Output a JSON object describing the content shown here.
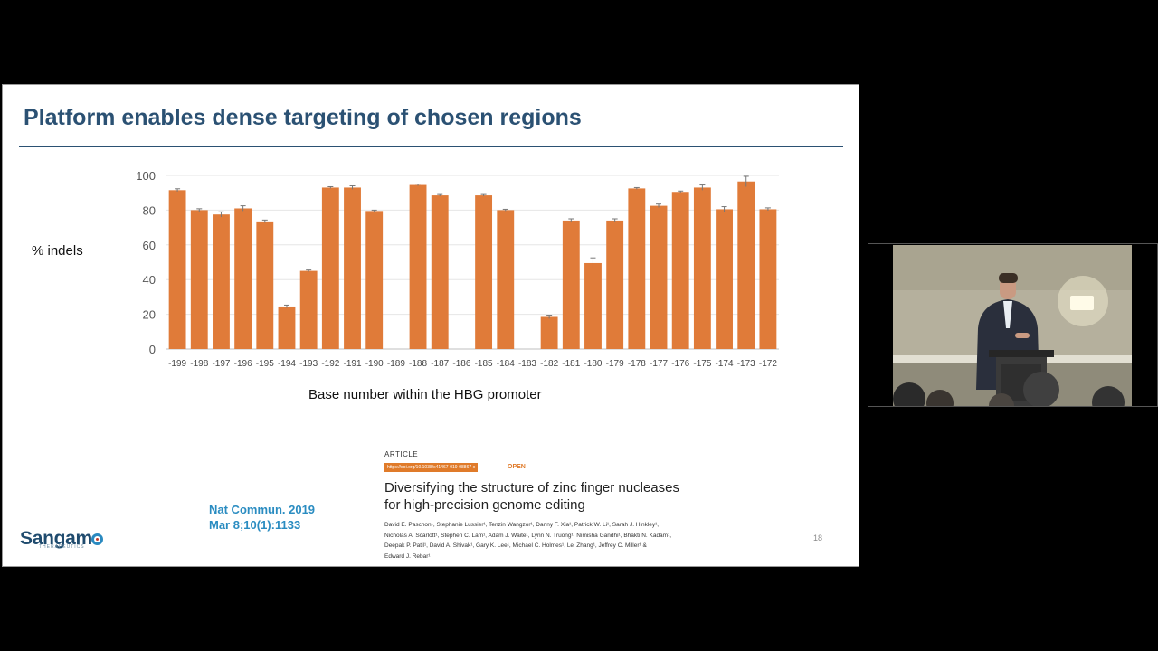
{
  "slide": {
    "title": "Platform enables dense targeting of chosen regions",
    "page_number": "18",
    "logo_text": "Sangam",
    "logo_subtext": "THERAPEUTICS",
    "journal_ref_line1": "Nat Commun. 2019",
    "journal_ref_line2": "Mar 8;10(1):1133"
  },
  "paper": {
    "type": "ARTICLE",
    "doi": "https://doi.org/10.1038/s41467-019-08867-x",
    "open_label": "OPEN",
    "title_line1": "Diversifying the structure of zinc finger nucleases",
    "title_line2": "for high-precision genome editing",
    "authors": [
      "David E. Paschon¹, Stephanie Lussier¹, Tenzin Wangzor¹, Danny F. Xia¹, Patrick W. Li¹, Sarah J. Hinkley¹,",
      "Nicholas A. Scarlott¹, Stephen C. Lam¹, Adam J. Waite¹, Lynn N. Truong¹, Nimisha Gandhi¹, Bhakti N. Kadam¹,",
      "Deepak P. Patil¹, David A. Shivak¹, Gary K. Lee¹, Michael C. Holmes¹, Lei Zhang¹, Jeffrey C. Miller¹ &",
      "Edward J. Rebar¹"
    ]
  },
  "chart_data": {
    "type": "bar",
    "title": "",
    "ylabel": "% indels",
    "xlabel": "Base number within the HBG promoter",
    "ylim": [
      0,
      100
    ],
    "yticks": [
      0,
      20,
      40,
      60,
      80,
      100
    ],
    "grid": true,
    "bar_color": "#e07b39",
    "categories": [
      "-199",
      "-198",
      "-197",
      "-196",
      "-195",
      "-194",
      "-193",
      "-192",
      "-191",
      "-190",
      "-189",
      "-188",
      "-187",
      "-186",
      "-185",
      "-184",
      "-183",
      "-182",
      "-181",
      "-180",
      "-179",
      "-178",
      "-177",
      "-176",
      "-175",
      "-174",
      "-173",
      "-172"
    ],
    "values": [
      91.5,
      80,
      77.5,
      81,
      73.5,
      24.5,
      45,
      93,
      93,
      79.5,
      null,
      94.5,
      88.5,
      null,
      88.5,
      80,
      null,
      18.5,
      74,
      49.5,
      74,
      92.5,
      82.5,
      90.5,
      93,
      80.5,
      96.5,
      80.5
    ],
    "errors": [
      0.8,
      0.8,
      1.5,
      1.5,
      0.8,
      0.8,
      0.5,
      0.5,
      1,
      0.5,
      null,
      0.5,
      0.5,
      null,
      0.5,
      0.5,
      null,
      1,
      1,
      3,
      1,
      0.5,
      1,
      0.5,
      1.5,
      1.5,
      3,
      0.8
    ]
  },
  "video": {
    "description_colors": {
      "wall": "#b5b09d",
      "suit": "#2a2f3c",
      "podium": "#3a3a3a",
      "lamp": "#fffbe8"
    }
  }
}
